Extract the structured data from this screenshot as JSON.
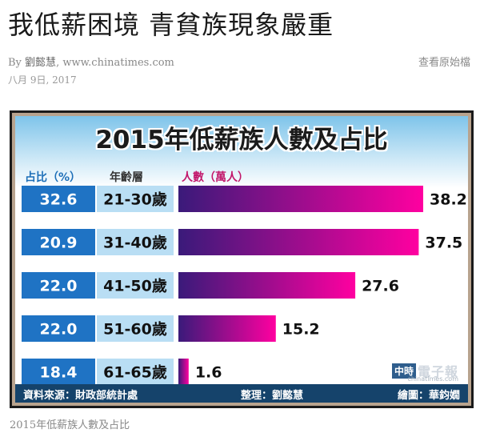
{
  "article": {
    "headline": "我低薪困境 青貧族現象嚴重",
    "by_prefix": "By",
    "author": "劉懿慧",
    "source_site": "www.chinatimes.com",
    "date": "八月 9日, 2017",
    "view_source_label": "查看原始檔",
    "image_caption": "2015年低薪族人數及占比"
  },
  "infographic": {
    "footer_source": "資料來源：財政部統計處",
    "footer_editor": "整理：劉懿慧",
    "footer_artist": "繪圖：華鈞嫺",
    "logo_mark": "中時",
    "logo_text": "電子報",
    "logo_sub": "chinatimes.com"
  },
  "chart_data": {
    "type": "bar",
    "title": "2015年低薪族人數及占比",
    "column_headers": {
      "percent": "占比（%）",
      "age": "年齡層",
      "count": "人數（萬人）"
    },
    "categories": [
      "21-30歲",
      "31-40歲",
      "41-50歲",
      "51-60歲",
      "61-65歲"
    ],
    "series": [
      {
        "name": "人數（萬人）",
        "values": [
          38.2,
          37.5,
          27.6,
          15.2,
          1.6
        ]
      }
    ],
    "percent_share": [
      "32.6",
      "20.9",
      "22.0",
      "22.0",
      "18.4"
    ],
    "value_labels": [
      "38.2",
      "37.5",
      "27.6",
      "15.2",
      "1.6"
    ],
    "orientation": "horizontal",
    "xlim": [
      0,
      38.2
    ],
    "grid": false,
    "colors": {
      "bar_start": "#3a1a7a",
      "bar_end": "#ff00a0",
      "pct_box": "#1f73c4",
      "age_box": "#b9def4",
      "title_band": "#7ec4ea"
    }
  }
}
